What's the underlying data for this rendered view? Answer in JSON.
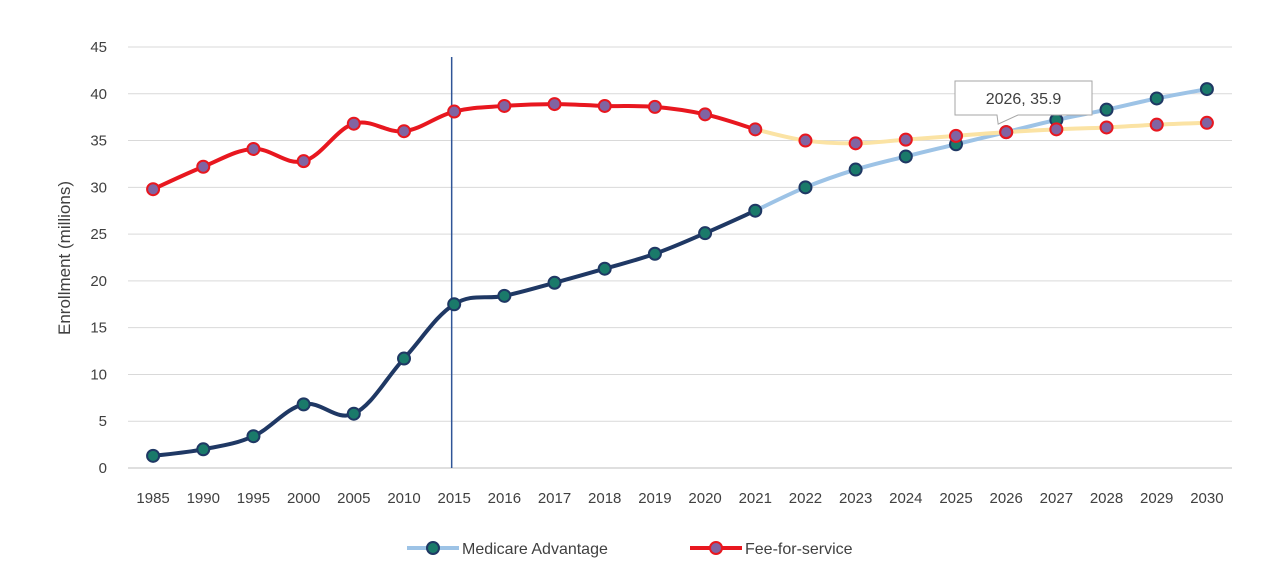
{
  "chart_data": {
    "type": "line",
    "xlabel": "",
    "ylabel": "Enrollment (millions)",
    "ylim": [
      0,
      45
    ],
    "yticks": [
      "0",
      "5",
      "10",
      "15",
      "20",
      "25",
      "30",
      "35",
      "40",
      "45"
    ],
    "categories": [
      "1985",
      "1990",
      "1995",
      "2000",
      "2005",
      "2010",
      "2015",
      "2016",
      "2017",
      "2018",
      "2019",
      "2020",
      "2021",
      "2022",
      "2023",
      "2024",
      "2025",
      "2026",
      "2027",
      "2028",
      "2029",
      "2030"
    ],
    "projection_start": "2021",
    "reference_line_at": "2015",
    "grid": "horizontal",
    "legend_position": "bottom",
    "series": [
      {
        "name": "Medicare Advantage",
        "values": [
          1.3,
          2.0,
          3.4,
          6.8,
          5.8,
          11.7,
          17.5,
          18.4,
          19.8,
          21.3,
          22.9,
          25.1,
          27.5,
          30.0,
          31.9,
          33.3,
          34.6,
          35.9,
          37.2,
          38.3,
          39.5,
          40.5
        ],
        "color": "#1f3864",
        "projection_color": "#9dc3e6",
        "marker_fill": "#1a7a6a",
        "marker_stroke": "#1f3864"
      },
      {
        "name": "Fee-for-service",
        "values": [
          29.8,
          32.2,
          34.1,
          32.8,
          36.8,
          36.0,
          38.1,
          38.7,
          38.9,
          38.7,
          38.6,
          37.8,
          36.2,
          35.0,
          34.7,
          35.1,
          35.5,
          35.9,
          36.2,
          36.4,
          36.7,
          36.9
        ],
        "color": "#e8171f",
        "projection_color": "#fbe3a4",
        "marker_fill": "#8064a2",
        "marker_stroke": "#e8171f"
      }
    ],
    "annotation": {
      "text": "2026, 35.9",
      "x": "2026",
      "y": 35.9
    }
  }
}
